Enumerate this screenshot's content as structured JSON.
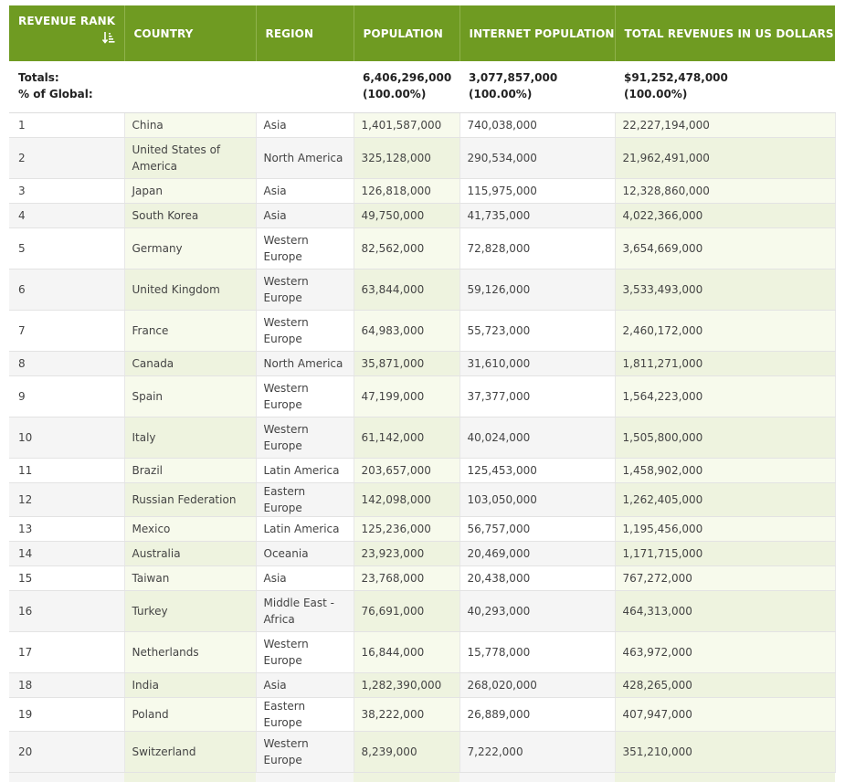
{
  "table": {
    "headers": {
      "rank": "REVENUE RANK",
      "country": "COUNTRY",
      "region": "REGION",
      "population": "POPULATION",
      "internet_population": "INTERNET POPULATION",
      "total_revenues": "TOTAL REVENUES IN US DOLLARS"
    },
    "sort_icon": "sort-descending-icon",
    "totals": {
      "label_line1": "Totals:",
      "label_line2": "% of Global:",
      "population": "6,406,296,000",
      "population_pct": "(100.00%)",
      "internet_population": "3,077,857,000",
      "internet_population_pct": "(100.00%)",
      "total_revenues": "$91,252,478,000",
      "total_revenues_pct": "(100.00%)"
    },
    "rows": [
      {
        "rank": "1",
        "country": "China",
        "region": "Asia",
        "population": "1,401,587,000",
        "internet_population": "740,038,000",
        "total_revenues": "22,227,194,000"
      },
      {
        "rank": "2",
        "country": "United States of America",
        "region": "North America",
        "population": "325,128,000",
        "internet_population": "290,534,000",
        "total_revenues": "21,962,491,000"
      },
      {
        "rank": "3",
        "country": "Japan",
        "region": "Asia",
        "population": "126,818,000",
        "internet_population": "115,975,000",
        "total_revenues": "12,328,860,000"
      },
      {
        "rank": "4",
        "country": "South Korea",
        "region": "Asia",
        "population": "49,750,000",
        "internet_population": "41,735,000",
        "total_revenues": "4,022,366,000"
      },
      {
        "rank": "5",
        "country": "Germany",
        "region": "Western Europe",
        "population": "82,562,000",
        "internet_population": "72,828,000",
        "total_revenues": "3,654,669,000"
      },
      {
        "rank": "6",
        "country": "United Kingdom",
        "region": "Western Europe",
        "population": "63,844,000",
        "internet_population": "59,126,000",
        "total_revenues": "3,533,493,000"
      },
      {
        "rank": "7",
        "country": "France",
        "region": "Western Europe",
        "population": "64,983,000",
        "internet_population": "55,723,000",
        "total_revenues": "2,460,172,000"
      },
      {
        "rank": "8",
        "country": "Canada",
        "region": "North America",
        "population": "35,871,000",
        "internet_population": "31,610,000",
        "total_revenues": "1,811,271,000"
      },
      {
        "rank": "9",
        "country": "Spain",
        "region": "Western Europe",
        "population": "47,199,000",
        "internet_population": "37,377,000",
        "total_revenues": "1,564,223,000"
      },
      {
        "rank": "10",
        "country": "Italy",
        "region": "Western Europe",
        "population": "61,142,000",
        "internet_population": "40,024,000",
        "total_revenues": "1,505,800,000"
      },
      {
        "rank": "11",
        "country": "Brazil",
        "region": "Latin America",
        "population": "203,657,000",
        "internet_population": "125,453,000",
        "total_revenues": "1,458,902,000"
      },
      {
        "rank": "12",
        "country": "Russian Federation",
        "region": "Eastern Europe",
        "population": "142,098,000",
        "internet_population": "103,050,000",
        "total_revenues": "1,262,405,000"
      },
      {
        "rank": "13",
        "country": "Mexico",
        "region": "Latin America",
        "population": "125,236,000",
        "internet_population": "56,757,000",
        "total_revenues": "1,195,456,000"
      },
      {
        "rank": "14",
        "country": "Australia",
        "region": "Oceania",
        "population": "23,923,000",
        "internet_population": "20,469,000",
        "total_revenues": "1,171,715,000"
      },
      {
        "rank": "15",
        "country": "Taiwan",
        "region": "Asia",
        "population": "23,768,000",
        "internet_population": "20,438,000",
        "total_revenues": "767,272,000"
      },
      {
        "rank": "16",
        "country": "Turkey",
        "region": "Middle East - Africa",
        "population": "76,691,000",
        "internet_population": "40,293,000",
        "total_revenues": "464,313,000"
      },
      {
        "rank": "17",
        "country": "Netherlands",
        "region": "Western Europe",
        "population": "16,844,000",
        "internet_population": "15,778,000",
        "total_revenues": "463,972,000"
      },
      {
        "rank": "18",
        "country": "India",
        "region": "Asia",
        "population": "1,282,390,000",
        "internet_population": "268,020,000",
        "total_revenues": "428,265,000"
      },
      {
        "rank": "19",
        "country": "Poland",
        "region": "Eastern Europe",
        "population": "38,222,000",
        "internet_population": "26,889,000",
        "total_revenues": "407,947,000"
      },
      {
        "rank": "20",
        "country": "Switzerland",
        "region": "Western Europe",
        "population": "8,239,000",
        "internet_population": "7,222,000",
        "total_revenues": "351,210,000"
      }
    ]
  },
  "colors": {
    "header_bg": "#6f9b22",
    "header_text": "#ffffff",
    "highlight_col": "#f7faec",
    "stripe": "#f5f5f5"
  }
}
